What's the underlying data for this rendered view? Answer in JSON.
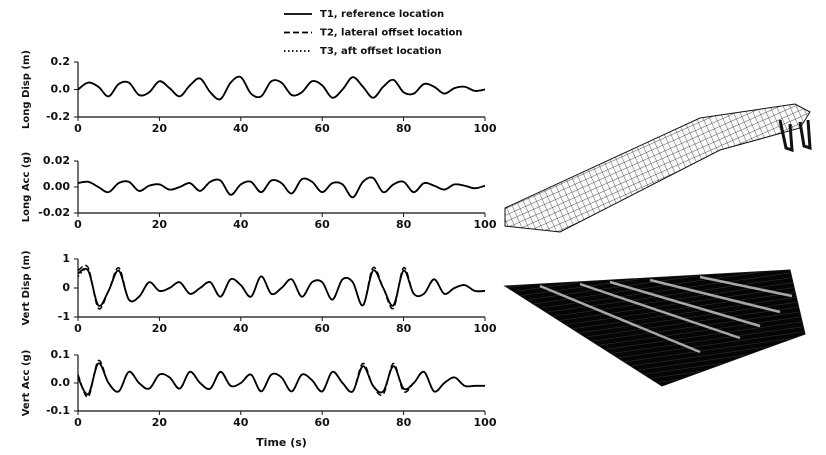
{
  "chart_data": [
    {
      "type": "line",
      "ylabel": "Long Disp (m)",
      "x": [
        0,
        2.5,
        5,
        7.5,
        10,
        12.5,
        15,
        17.5,
        20,
        22.5,
        25,
        27.5,
        30,
        32.5,
        35,
        37.5,
        40,
        42.5,
        45,
        47.5,
        50,
        52.5,
        55,
        57.5,
        60,
        62.5,
        65,
        67.5,
        70,
        72.5,
        75,
        77.5,
        80,
        82.5,
        85,
        87.5,
        90,
        92.5,
        95,
        97.5,
        100
      ],
      "xlim": [
        0,
        100
      ],
      "xticks": [
        0,
        20,
        40,
        60,
        80,
        100
      ],
      "ylim": [
        -0.2,
        0.2
      ],
      "yticks": [
        -0.2,
        {
          "value": 0,
          "label": "0.0"
        },
        0.2
      ],
      "series": [
        {
          "name": "T1, reference location",
          "dash": "solid",
          "color": "#000000",
          "values": [
            0.0,
            0.05,
            0.02,
            -0.05,
            0.04,
            0.05,
            -0.04,
            -0.02,
            0.06,
            0.01,
            -0.05,
            0.03,
            0.08,
            -0.02,
            -0.07,
            0.05,
            0.09,
            -0.03,
            -0.05,
            0.06,
            0.05,
            -0.04,
            -0.02,
            0.06,
            0.03,
            -0.06,
            0.0,
            0.09,
            0.02,
            -0.06,
            0.02,
            0.07,
            -0.02,
            -0.03,
            0.04,
            0.02,
            -0.03,
            0.01,
            0.02,
            -0.01,
            0.0
          ]
        },
        {
          "name": "T2, lateral offset location",
          "dash": "dashed",
          "color": "#000000",
          "values": [
            0.0,
            0.05,
            0.02,
            -0.05,
            0.04,
            0.05,
            -0.04,
            -0.02,
            0.06,
            0.01,
            -0.05,
            0.03,
            0.08,
            -0.02,
            -0.07,
            0.05,
            0.09,
            -0.03,
            -0.05,
            0.06,
            0.05,
            -0.04,
            -0.02,
            0.06,
            0.03,
            -0.06,
            0.0,
            0.09,
            0.02,
            -0.06,
            0.02,
            0.07,
            -0.02,
            -0.03,
            0.04,
            0.02,
            -0.03,
            0.01,
            0.02,
            -0.01,
            0.0
          ]
        },
        {
          "name": "T3, aft offset location",
          "dash": "dotted",
          "color": "#000000",
          "values": [
            0.0,
            0.05,
            0.02,
            -0.05,
            0.04,
            0.05,
            -0.04,
            -0.02,
            0.06,
            0.01,
            -0.05,
            0.03,
            0.08,
            -0.02,
            -0.07,
            0.05,
            0.09,
            -0.03,
            -0.05,
            0.06,
            0.05,
            -0.04,
            -0.02,
            0.06,
            0.03,
            -0.06,
            0.0,
            0.09,
            0.02,
            -0.06,
            0.02,
            0.07,
            -0.02,
            -0.03,
            0.04,
            0.02,
            -0.03,
            0.01,
            0.02,
            -0.01,
            0.0
          ]
        }
      ]
    },
    {
      "type": "line",
      "ylabel": "Long Acc (g)",
      "x": [
        0,
        2.5,
        5,
        7.5,
        10,
        12.5,
        15,
        17.5,
        20,
        22.5,
        25,
        27.5,
        30,
        32.5,
        35,
        37.5,
        40,
        42.5,
        45,
        47.5,
        50,
        52.5,
        55,
        57.5,
        60,
        62.5,
        65,
        67.5,
        70,
        72.5,
        75,
        77.5,
        80,
        82.5,
        85,
        87.5,
        90,
        92.5,
        95,
        97.5,
        100
      ],
      "xlim": [
        0,
        100
      ],
      "xticks": [
        0,
        20,
        40,
        60,
        80,
        100
      ],
      "ylim": [
        -0.02,
        0.02
      ],
      "yticks": [
        -0.02,
        {
          "value": 0,
          "label": "0.00"
        },
        0.02
      ],
      "series": [
        {
          "dash": "solid",
          "color": "#000000",
          "values": [
            0.003,
            0.004,
            0.0,
            -0.004,
            0.003,
            0.004,
            -0.003,
            0.001,
            0.002,
            -0.002,
            0.0,
            0.003,
            -0.003,
            0.004,
            0.005,
            -0.006,
            0.002,
            0.004,
            -0.004,
            0.005,
            0.003,
            -0.005,
            0.006,
            0.004,
            -0.004,
            0.003,
            0.002,
            -0.008,
            0.004,
            0.007,
            -0.004,
            0.002,
            0.004,
            -0.004,
            0.003,
            0.001,
            -0.002,
            0.002,
            0.001,
            -0.001,
            0.001
          ]
        },
        {
          "dash": "dashed",
          "color": "#000000",
          "values": [
            0.003,
            0.004,
            0.0,
            -0.004,
            0.003,
            0.004,
            -0.003,
            0.001,
            0.002,
            -0.002,
            0.0,
            0.003,
            -0.003,
            0.004,
            0.005,
            -0.006,
            0.002,
            0.004,
            -0.004,
            0.005,
            0.003,
            -0.005,
            0.006,
            0.004,
            -0.004,
            0.003,
            0.002,
            -0.008,
            0.004,
            0.007,
            -0.004,
            0.002,
            0.004,
            -0.004,
            0.003,
            0.001,
            -0.002,
            0.002,
            0.001,
            -0.001,
            0.001
          ]
        },
        {
          "dash": "dotted",
          "color": "#000000",
          "values": [
            0.003,
            0.004,
            0.0,
            -0.004,
            0.003,
            0.004,
            -0.003,
            0.001,
            0.002,
            -0.002,
            0.0,
            0.003,
            -0.003,
            0.004,
            0.005,
            -0.006,
            0.002,
            0.004,
            -0.004,
            0.005,
            0.003,
            -0.005,
            0.006,
            0.004,
            -0.004,
            0.003,
            0.002,
            -0.008,
            0.004,
            0.007,
            -0.004,
            0.002,
            0.004,
            -0.004,
            0.003,
            0.001,
            -0.002,
            0.002,
            0.001,
            -0.001,
            0.001
          ]
        }
      ]
    },
    {
      "type": "line",
      "ylabel": "Vert Disp (m)",
      "x": [
        0,
        2.5,
        5,
        7.5,
        10,
        12.5,
        15,
        17.5,
        20,
        22.5,
        25,
        27.5,
        30,
        32.5,
        35,
        37.5,
        40,
        42.5,
        45,
        47.5,
        50,
        52.5,
        55,
        57.5,
        60,
        62.5,
        65,
        67.5,
        70,
        72.5,
        75,
        77.5,
        80,
        82.5,
        85,
        87.5,
        90,
        92.5,
        95,
        97.5,
        100
      ],
      "xlim": [
        0,
        100
      ],
      "xticks": [
        0,
        20,
        40,
        60,
        80,
        100
      ],
      "ylim": [
        -1,
        1
      ],
      "yticks": [
        -1,
        0,
        1
      ],
      "series": [
        {
          "dash": "solid",
          "color": "#000000",
          "values": [
            0.5,
            0.6,
            -0.6,
            -0.1,
            0.6,
            -0.4,
            -0.3,
            0.2,
            -0.1,
            0.0,
            0.2,
            -0.2,
            0.0,
            0.2,
            -0.3,
            0.3,
            0.1,
            -0.3,
            0.4,
            -0.2,
            0.0,
            0.3,
            -0.3,
            0.2,
            0.2,
            -0.4,
            0.3,
            0.2,
            -0.6,
            0.6,
            0.0,
            -0.6,
            0.6,
            -0.2,
            -0.2,
            0.3,
            -0.2,
            0.0,
            0.1,
            -0.1,
            -0.1
          ]
        },
        {
          "dash": "dashed",
          "color": "#000000",
          "values": [
            0.6,
            0.7,
            -0.7,
            -0.1,
            0.7,
            -0.4,
            -0.3,
            0.2,
            -0.1,
            0.0,
            0.2,
            -0.2,
            0.0,
            0.2,
            -0.3,
            0.3,
            0.1,
            -0.3,
            0.4,
            -0.2,
            0.0,
            0.3,
            -0.3,
            0.2,
            0.2,
            -0.4,
            0.3,
            0.2,
            -0.6,
            0.7,
            0.0,
            -0.7,
            0.7,
            -0.2,
            -0.2,
            0.3,
            -0.2,
            0.0,
            0.1,
            -0.1,
            -0.1
          ]
        },
        {
          "dash": "dotted",
          "color": "#000000",
          "values": [
            0.4,
            0.6,
            -0.6,
            -0.1,
            0.6,
            -0.4,
            -0.3,
            0.2,
            -0.1,
            0.0,
            0.2,
            -0.2,
            0.0,
            0.2,
            -0.3,
            0.3,
            0.1,
            -0.3,
            0.4,
            -0.2,
            0.0,
            0.3,
            -0.3,
            0.2,
            0.2,
            -0.4,
            0.3,
            0.2,
            -0.6,
            0.6,
            0.0,
            -0.6,
            0.6,
            -0.2,
            -0.2,
            0.3,
            -0.2,
            0.0,
            0.1,
            -0.1,
            -0.1
          ]
        }
      ]
    },
    {
      "type": "line",
      "ylabel": "Vert Acc (g)",
      "xlabel": "Time (s)",
      "x": [
        0,
        2.5,
        5,
        7.5,
        10,
        12.5,
        15,
        17.5,
        20,
        22.5,
        25,
        27.5,
        30,
        32.5,
        35,
        37.5,
        40,
        42.5,
        45,
        47.5,
        50,
        52.5,
        55,
        57.5,
        60,
        62.5,
        65,
        67.5,
        70,
        72.5,
        75,
        77.5,
        80,
        82.5,
        85,
        87.5,
        90,
        92.5,
        95,
        97.5,
        100
      ],
      "xlim": [
        0,
        100
      ],
      "xticks": [
        0,
        20,
        40,
        60,
        80,
        100
      ],
      "ylim": [
        -0.1,
        0.1
      ],
      "yticks": [
        -0.1,
        {
          "value": 0,
          "label": "0.0"
        },
        0.1
      ],
      "series": [
        {
          "dash": "solid",
          "color": "#000000",
          "values": [
            0.02,
            -0.04,
            0.07,
            0.0,
            -0.03,
            0.04,
            0.0,
            -0.02,
            0.03,
            0.02,
            -0.02,
            0.04,
            0.0,
            -0.02,
            0.04,
            -0.01,
            0.0,
            0.03,
            -0.03,
            0.03,
            0.02,
            -0.03,
            0.03,
            0.01,
            -0.03,
            0.04,
            0.0,
            -0.03,
            0.06,
            -0.01,
            -0.03,
            0.06,
            -0.02,
            0.0,
            0.04,
            -0.03,
            0.0,
            0.02,
            -0.01,
            -0.01,
            -0.01
          ]
        },
        {
          "dash": "dashed",
          "color": "#000000",
          "values": [
            0.03,
            -0.05,
            0.08,
            0.0,
            -0.03,
            0.04,
            0.0,
            -0.02,
            0.03,
            0.02,
            -0.02,
            0.04,
            0.0,
            -0.02,
            0.04,
            -0.01,
            0.0,
            0.03,
            -0.03,
            0.03,
            0.02,
            -0.03,
            0.03,
            0.01,
            -0.03,
            0.04,
            0.0,
            -0.03,
            0.07,
            -0.01,
            -0.04,
            0.07,
            -0.03,
            0.0,
            0.04,
            -0.03,
            0.0,
            0.02,
            -0.01,
            -0.01,
            -0.01
          ]
        },
        {
          "dash": "dotted",
          "color": "#000000",
          "values": [
            0.02,
            -0.04,
            0.07,
            0.0,
            -0.03,
            0.04,
            0.0,
            -0.02,
            0.03,
            0.02,
            -0.02,
            0.04,
            0.0,
            -0.02,
            0.04,
            -0.01,
            0.0,
            0.03,
            -0.03,
            0.03,
            0.02,
            -0.03,
            0.03,
            0.01,
            -0.03,
            0.04,
            0.0,
            -0.03,
            0.06,
            -0.01,
            -0.03,
            0.06,
            -0.02,
            0.0,
            0.04,
            -0.03,
            0.0,
            0.02,
            -0.01,
            -0.01,
            -0.01
          ]
        }
      ]
    }
  ]
}
